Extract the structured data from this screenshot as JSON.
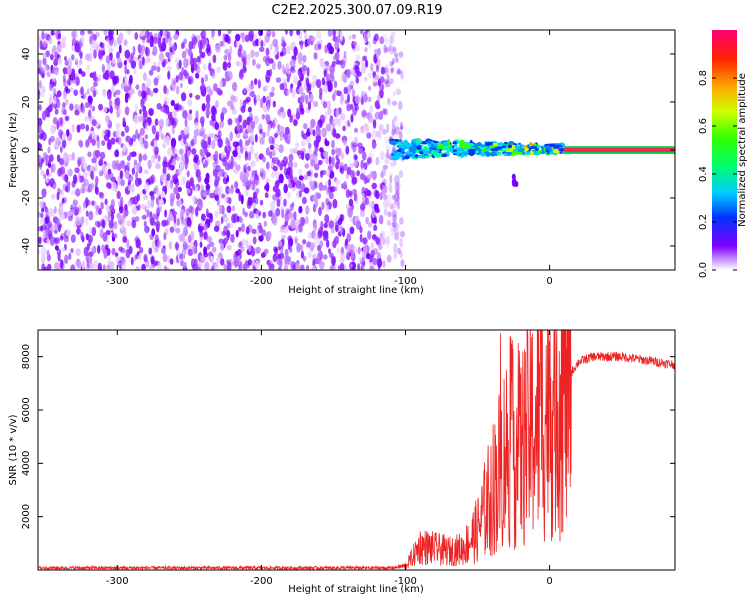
{
  "title": "C2E2.2025.300.07.09.R19",
  "chart_data": [
    {
      "type": "heatmap",
      "xlabel": "Height of straight line (km)",
      "ylabel": "Frequency (Hz)",
      "xlim": [
        -355,
        87
      ],
      "ylim": [
        -50,
        50
      ],
      "xticks": [
        -300,
        -200,
        -100,
        0
      ],
      "yticks": [
        -40,
        -20,
        0,
        20,
        40
      ],
      "description_regions": [
        {
          "x_range": [
            -355,
            -110
          ],
          "frequency_range": [
            -50,
            50
          ],
          "normalized_amplitude": [
            0.0,
            0.15
          ]
        },
        {
          "x_range": [
            -110,
            10
          ],
          "frequency_range": [
            -4,
            4
          ],
          "normalized_amplitude": [
            0.2,
            0.8
          ]
        },
        {
          "x_range": [
            10,
            87
          ],
          "frequency_range": [
            -1,
            1
          ],
          "normalized_amplitude": [
            0.95,
            1.0
          ]
        }
      ],
      "colorbar": {
        "label": "Normalized spectral amplitude",
        "range": [
          0.0,
          1.0
        ],
        "ticks": [
          "0.0",
          "0.2",
          "0.4",
          "0.6",
          "0.8"
        ]
      }
    },
    {
      "type": "line",
      "series": [
        {
          "name": "SNR",
          "color": "#ee2222"
        }
      ],
      "xlabel": "Height of straight line (km)",
      "ylabel": "SNR (10 * v/v)",
      "xlim": [
        -355,
        87
      ],
      "ylim": [
        0,
        9000
      ],
      "xticks": [
        -300,
        -200,
        -100,
        0
      ],
      "yticks": [
        2000,
        4000,
        6000,
        8000
      ],
      "profile_points": [
        [
          -355,
          80
        ],
        [
          -110,
          80
        ],
        [
          -100,
          150
        ],
        [
          -95,
          500
        ],
        [
          -90,
          900
        ],
        [
          -80,
          800
        ],
        [
          -70,
          700
        ],
        [
          -60,
          800
        ],
        [
          -50,
          1500
        ],
        [
          -40,
          3000
        ],
        [
          -30,
          4500
        ],
        [
          -20,
          4500
        ],
        [
          -10,
          5500
        ],
        [
          0,
          6300
        ],
        [
          10,
          7000
        ],
        [
          20,
          7800
        ],
        [
          30,
          8000
        ],
        [
          50,
          8000
        ],
        [
          87,
          7700
        ]
      ]
    }
  ]
}
